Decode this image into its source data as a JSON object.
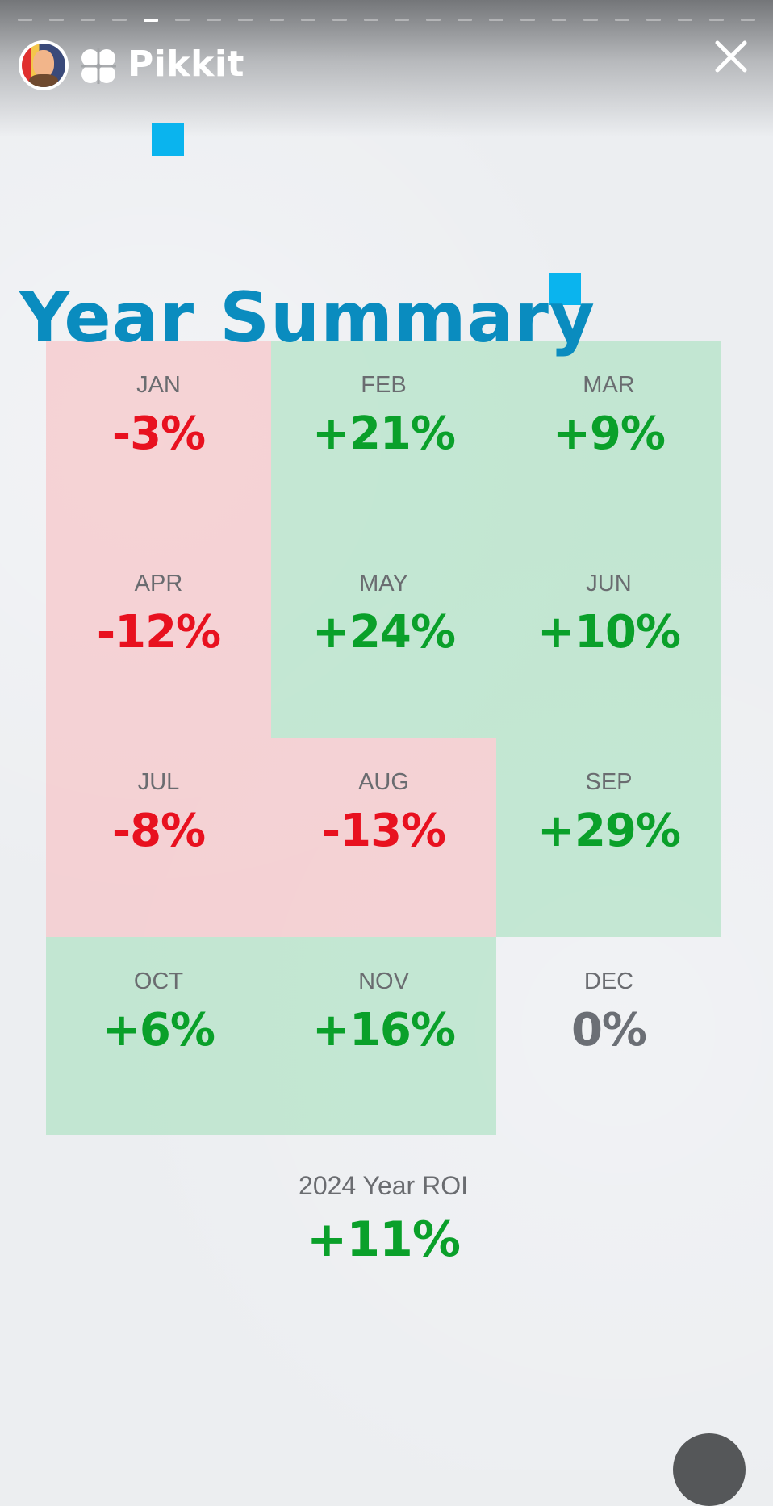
{
  "header": {
    "brand_name": "Pikkit",
    "close_icon": "close-icon",
    "brand_icon": "clover-icon",
    "avatar": "user-avatar"
  },
  "story": {
    "total_segments": 24,
    "active_segment": 5
  },
  "title": "Year Summary",
  "months": [
    {
      "label": "JAN",
      "value": "-3%",
      "status": "negative"
    },
    {
      "label": "FEB",
      "value": "+21%",
      "status": "positive"
    },
    {
      "label": "MAR",
      "value": "+9%",
      "status": "positive"
    },
    {
      "label": "APR",
      "value": "-12%",
      "status": "negative"
    },
    {
      "label": "MAY",
      "value": "+24%",
      "status": "positive"
    },
    {
      "label": "JUN",
      "value": "+10%",
      "status": "positive"
    },
    {
      "label": "JUL",
      "value": "-8%",
      "status": "negative"
    },
    {
      "label": "AUG",
      "value": "-13%",
      "status": "negative"
    },
    {
      "label": "SEP",
      "value": "+29%",
      "status": "positive"
    },
    {
      "label": "OCT",
      "value": "+6%",
      "status": "positive"
    },
    {
      "label": "NOV",
      "value": "+16%",
      "status": "positive"
    },
    {
      "label": "DEC",
      "value": "0%",
      "status": "neutral"
    }
  ],
  "roi": {
    "label": "2024 Year ROI",
    "value": "+11%"
  },
  "colors": {
    "accent": "#0a8cbf",
    "deco_square": "#0ab4ee",
    "positive": "#0aa02a",
    "negative": "#e8111f",
    "neutral": "#6b6f75"
  }
}
